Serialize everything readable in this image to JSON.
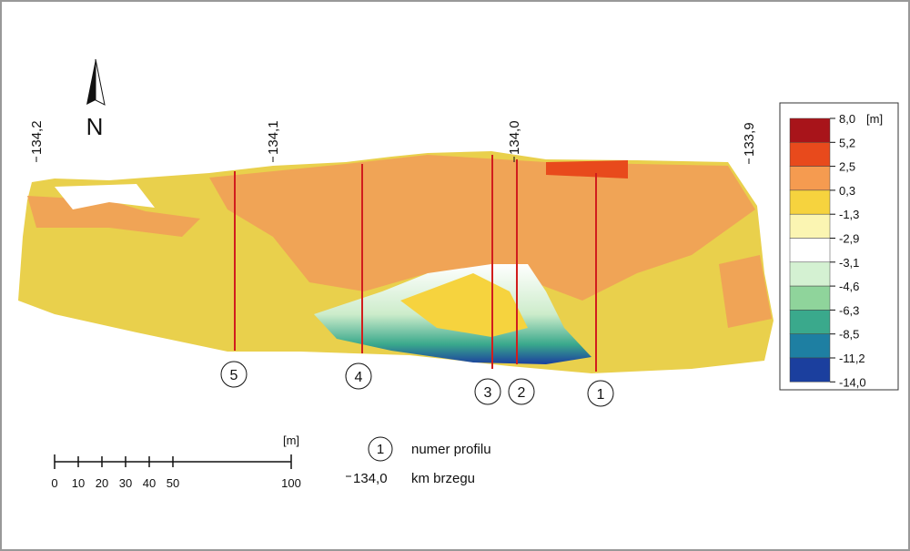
{
  "north": "N",
  "km_labels": [
    "134,2",
    "134,1",
    "134,0",
    "133,9"
  ],
  "profiles": [
    "5",
    "4",
    "3",
    "2",
    "1"
  ],
  "color_legend": {
    "unit": "[m]",
    "labels": [
      "8,0",
      "5,2",
      "2,5",
      "0,3",
      "-1,3",
      "-2,9",
      "-3,1",
      "-4,6",
      "-6,3",
      "-8,5",
      "-11,2",
      "-14,0"
    ],
    "colors": [
      "#a8141a",
      "#e84a1c",
      "#f59b50",
      "#f6d33e",
      "#fbf5b2",
      "#ffffff",
      "#d4f1d2",
      "#8fd49b",
      "#3aa98c",
      "#1e7fa2",
      "#1b3f9e"
    ]
  },
  "scale_bar": {
    "unit": "[m]",
    "ticks": [
      0,
      10,
      20,
      30,
      40,
      50,
      100
    ]
  },
  "key": {
    "profile_symbol": "1",
    "profile_text": "numer profilu",
    "km_symbol": "134,0",
    "km_text": "km brzegu"
  }
}
